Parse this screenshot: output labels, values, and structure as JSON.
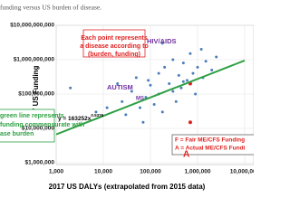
{
  "chart_data": {
    "type": "scatter",
    "title": "funding versus US burden of disease.",
    "x_label": "2017 US DALYs (extrapolated from 2015 data)",
    "y_label": "2017 US Funding",
    "log_x": true,
    "log_y": true,
    "xlim": [
      1000,
      10000000
    ],
    "ylim": [
      1000000,
      10000000000
    ],
    "xticks": [
      {
        "value": 1000,
        "label": "1,000"
      },
      {
        "value": 10000,
        "label": "10,000"
      },
      {
        "value": 100000,
        "label": "100,000"
      },
      {
        "value": 1000000,
        "label": "1,000,000"
      },
      {
        "value": 10000000,
        "label": "10,000,000"
      }
    ],
    "yticks": [
      {
        "value": 1000000,
        "label": "$1,000,000"
      },
      {
        "value": 10000000,
        "label": "$10,000,000"
      },
      {
        "value": 100000000,
        "label": "$100,000,000"
      },
      {
        "value": 1000000000,
        "label": "$1,000,000,000"
      },
      {
        "value": 10000000000,
        "label": "$10,000,000,000"
      }
    ],
    "series": [
      {
        "color": "#4a7ebb",
        "x": [
          2000,
          7000,
          12000,
          20000,
          25000,
          30000,
          40000,
          50000,
          60000,
          70000,
          80000,
          90000,
          100000,
          120000,
          150000,
          150000,
          180000,
          200000,
          250000,
          300000,
          300000,
          350000,
          400000,
          450000,
          500000,
          600000,
          700000,
          800000,
          900000,
          1000000,
          1200000,
          1300000,
          1500000,
          2000000,
          2500000,
          180000,
          500000
        ],
        "values": [
          150000000,
          30000000,
          40000000,
          200000000,
          60000000,
          25000000,
          120000000,
          300000000,
          40000000,
          15000000,
          80000000,
          250000000,
          180000000,
          50000000,
          400000000,
          100000000,
          30000000,
          600000000,
          200000000,
          1000000000,
          120000000,
          60000000,
          350000000,
          150000000,
          800000000,
          250000000,
          1500000000,
          400000000,
          100000000,
          600000000,
          2000000000,
          300000000,
          900000000,
          500000000,
          1200000000,
          3000000000,
          230000000
        ]
      },
      {
        "color": "#e02020",
        "x": [
          700000,
          700000
        ],
        "values": [
          200000000,
          15000000
        ]
      }
    ],
    "trendline": {
      "color": "#2ea043",
      "text": "y = 163252x",
      "exponent_text": "0.5376",
      "a": 163252,
      "b": 0.5376
    },
    "annotations": {
      "note": [
        "Each point represents",
        "a disease according to",
        "(burden, funding)"
      ],
      "hiv": "HIV/AIDS",
      "autism": "AUTISM",
      "ms": "MS",
      "a_marker": "A",
      "green_note": [
        "green line represents",
        "funding commensurate with",
        "ase burden"
      ],
      "key": [
        "F = Fair ME/CFS Funding",
        "A = Actual ME/CFS Fundi"
      ]
    }
  }
}
